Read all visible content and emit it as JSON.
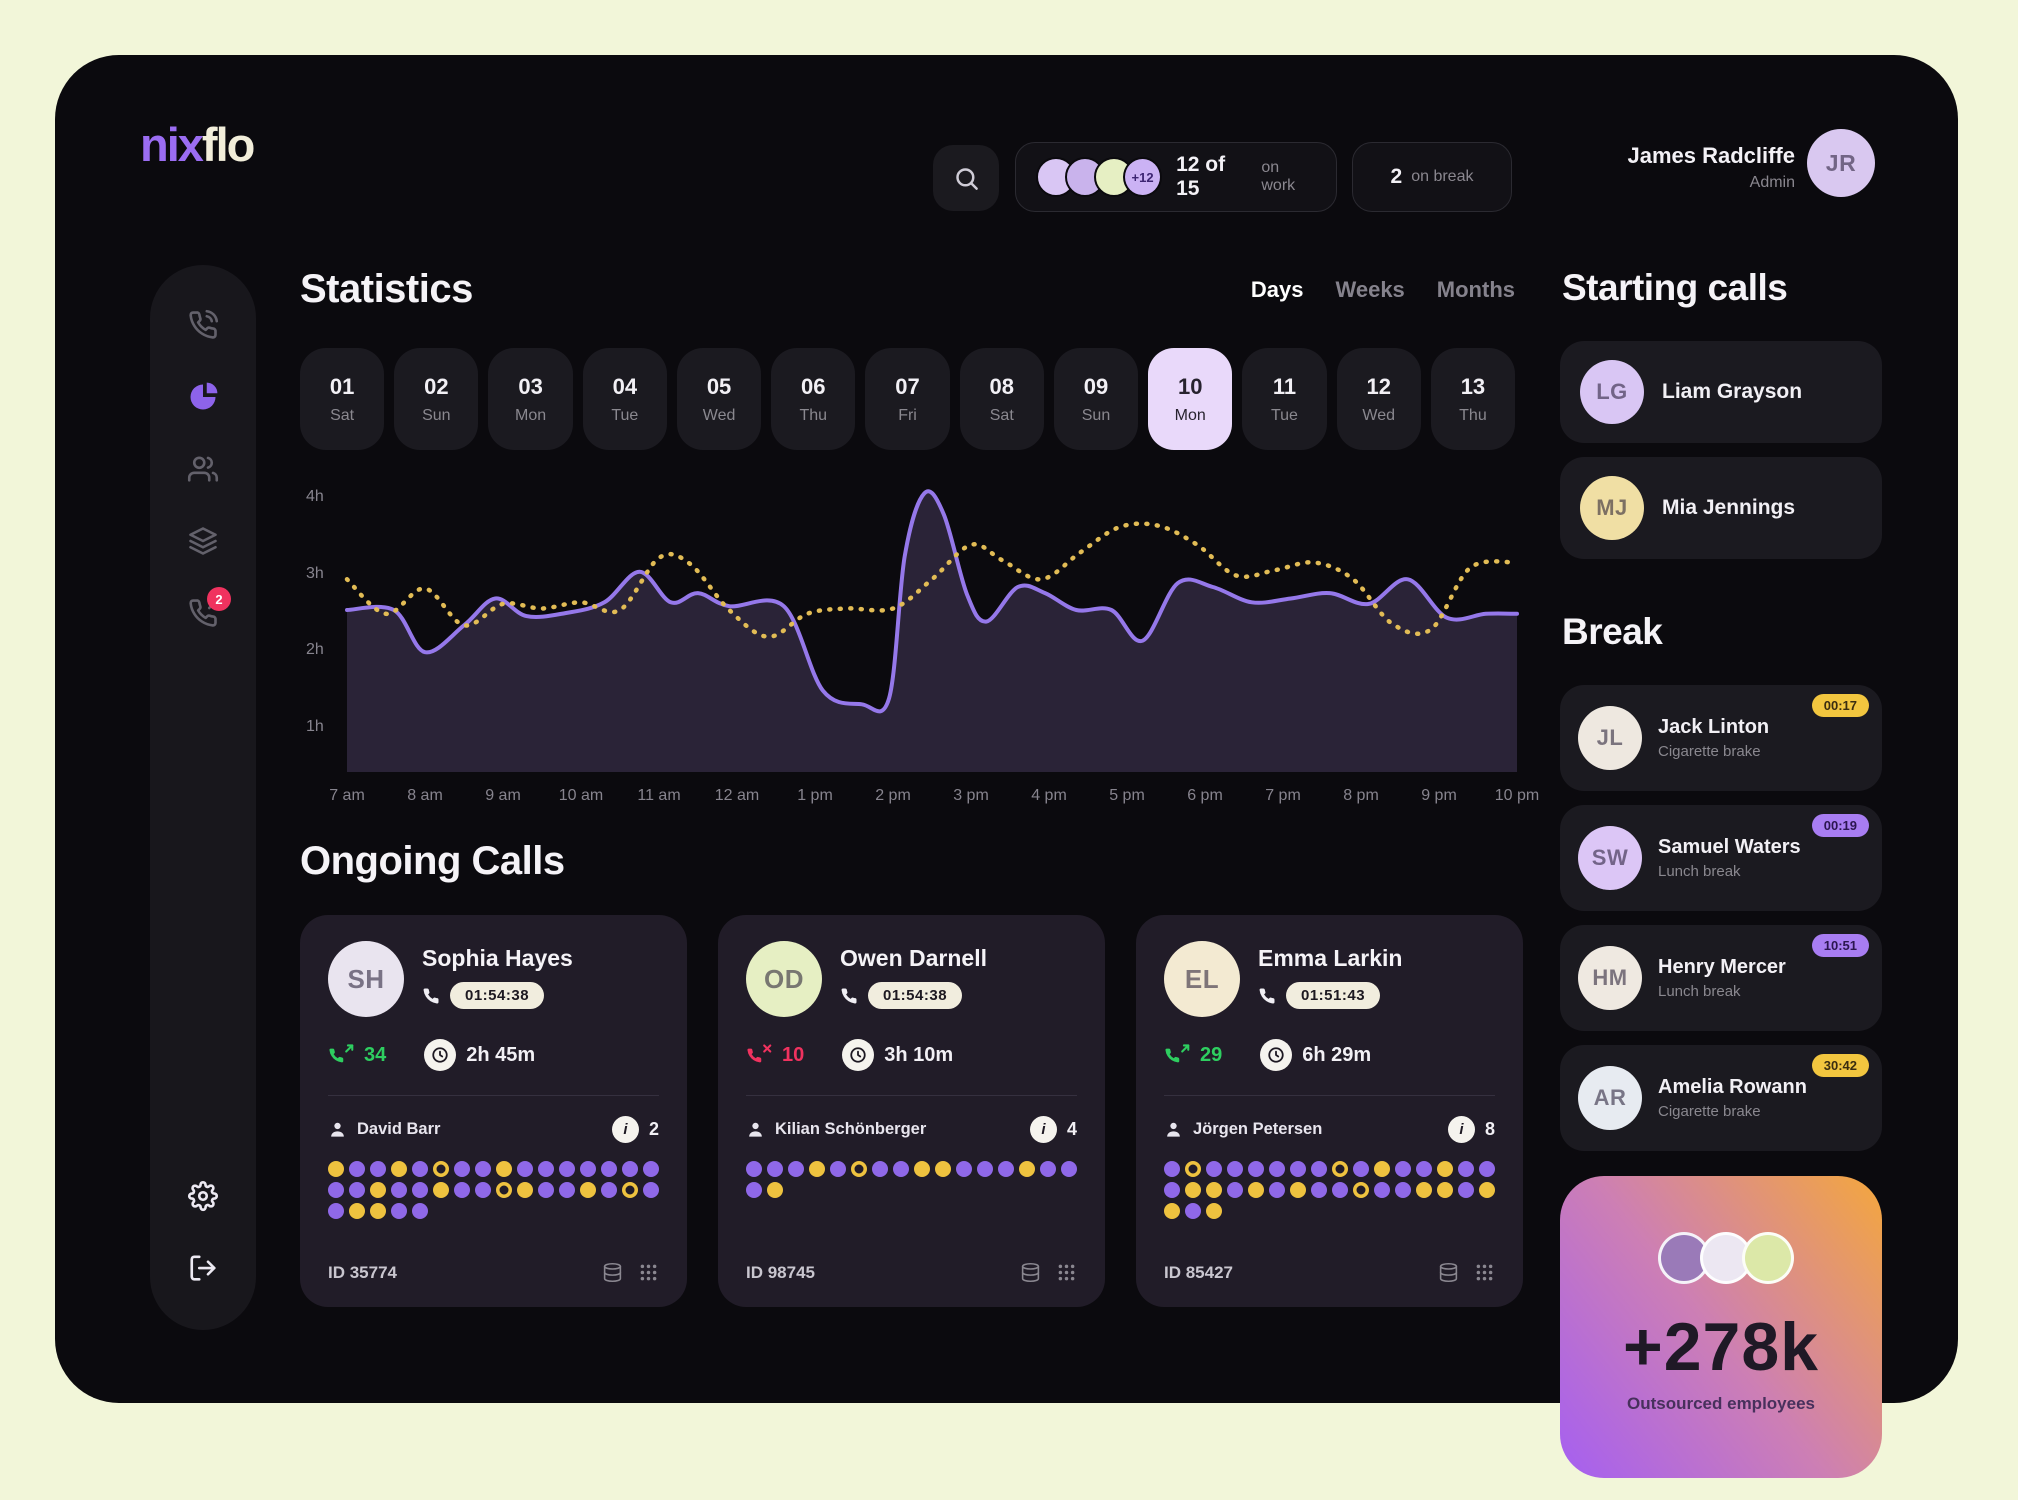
{
  "app": {
    "logo_nix": "nix",
    "logo_flo": "flo"
  },
  "topbar": {
    "on_work": {
      "count": "12 of 15",
      "suffix": "on work",
      "more_badge": "+12",
      "avatars": [
        {
          "bg": "#d9c6f4"
        },
        {
          "bg": "#c9b3ec"
        },
        {
          "bg": "#e6efc3"
        }
      ]
    },
    "on_break": {
      "count": "2",
      "suffix": "on break"
    },
    "user": {
      "name": "James Radcliffe",
      "role": "Admin",
      "initials": "JR",
      "avatar_bg": "#d9c8f0"
    }
  },
  "sidebar": {
    "items": [
      {
        "icon": "phone-call-icon",
        "active": false
      },
      {
        "icon": "pie-chart-icon",
        "active": true
      },
      {
        "icon": "team-icon",
        "active": false
      },
      {
        "icon": "layers-icon",
        "active": false
      },
      {
        "icon": "missed-call-icon",
        "active": false,
        "badge": "2"
      }
    ],
    "bottom_items": [
      {
        "icon": "settings-icon"
      },
      {
        "icon": "logout-icon"
      }
    ]
  },
  "statistics": {
    "title": "Statistics",
    "tabs": [
      {
        "label": "Days",
        "active": true
      },
      {
        "label": "Weeks",
        "active": false
      },
      {
        "label": "Months",
        "active": false
      }
    ],
    "dates": [
      {
        "num": "01",
        "day": "Sat",
        "selected": false
      },
      {
        "num": "02",
        "day": "Sun",
        "selected": false
      },
      {
        "num": "03",
        "day": "Mon",
        "selected": false
      },
      {
        "num": "04",
        "day": "Tue",
        "selected": false
      },
      {
        "num": "05",
        "day": "Wed",
        "selected": false
      },
      {
        "num": "06",
        "day": "Thu",
        "selected": false
      },
      {
        "num": "07",
        "day": "Fri",
        "selected": false
      },
      {
        "num": "08",
        "day": "Sat",
        "selected": false
      },
      {
        "num": "09",
        "day": "Sun",
        "selected": false
      },
      {
        "num": "10",
        "day": "Mon",
        "selected": true
      },
      {
        "num": "11",
        "day": "Tue",
        "selected": false
      },
      {
        "num": "12",
        "day": "Wed",
        "selected": false
      },
      {
        "num": "13",
        "day": "Thu",
        "selected": false
      }
    ]
  },
  "chart_data": {
    "type": "line",
    "title": "Statistics — call hours by time of day (10 Mon)",
    "x_range": [
      7,
      22
    ],
    "y_range": [
      1,
      4
    ],
    "x_ticks": [
      "7 am",
      "8 am",
      "9 am",
      "10 am",
      "11 am",
      "12 am",
      "1 pm",
      "2 pm",
      "3 pm",
      "4 pm",
      "5 pm",
      "6 pm",
      "7 pm",
      "8 pm",
      "9 pm",
      "10 pm"
    ],
    "y_ticks": [
      "4h",
      "3h",
      "2h",
      "1h"
    ],
    "grid": false,
    "legend": "none",
    "series": [
      {
        "name": "purple-area-series",
        "style": "solid-area",
        "color": "#9578ea",
        "fill": "#2a2337",
        "points": [
          [
            7,
            2.5
          ],
          [
            7.6,
            2.5
          ],
          [
            8,
            1.95
          ],
          [
            8.5,
            2.3
          ],
          [
            8.9,
            2.65
          ],
          [
            9.3,
            2.42
          ],
          [
            9.8,
            2.46
          ],
          [
            10.3,
            2.6
          ],
          [
            10.75,
            3.0
          ],
          [
            11.15,
            2.6
          ],
          [
            11.5,
            2.72
          ],
          [
            11.9,
            2.55
          ],
          [
            12.6,
            2.55
          ],
          [
            13.1,
            1.45
          ],
          [
            13.6,
            1.27
          ],
          [
            13.95,
            1.35
          ],
          [
            14.15,
            3.2
          ],
          [
            14.4,
            4.02
          ],
          [
            14.65,
            3.75
          ],
          [
            14.95,
            2.7
          ],
          [
            15.2,
            2.35
          ],
          [
            15.6,
            2.8
          ],
          [
            15.95,
            2.72
          ],
          [
            16.35,
            2.5
          ],
          [
            16.8,
            2.5
          ],
          [
            17.2,
            2.1
          ],
          [
            17.65,
            2.85
          ],
          [
            18.1,
            2.8
          ],
          [
            18.6,
            2.6
          ],
          [
            19.1,
            2.65
          ],
          [
            19.6,
            2.72
          ],
          [
            20.1,
            2.58
          ],
          [
            20.6,
            2.9
          ],
          [
            21.1,
            2.4
          ],
          [
            21.6,
            2.45
          ],
          [
            22,
            2.45
          ]
        ]
      },
      {
        "name": "yellow-dashed-series",
        "style": "dashed",
        "color": "#e2bc55",
        "points": [
          [
            7,
            2.9
          ],
          [
            7.5,
            2.45
          ],
          [
            8,
            2.78
          ],
          [
            8.5,
            2.3
          ],
          [
            9,
            2.58
          ],
          [
            9.5,
            2.52
          ],
          [
            10,
            2.6
          ],
          [
            10.5,
            2.5
          ],
          [
            11,
            3.18
          ],
          [
            11.4,
            3.1
          ],
          [
            11.9,
            2.5
          ],
          [
            12.4,
            2.15
          ],
          [
            12.9,
            2.45
          ],
          [
            13.4,
            2.52
          ],
          [
            14,
            2.52
          ],
          [
            14.5,
            2.9
          ],
          [
            15,
            3.35
          ],
          [
            15.4,
            3.15
          ],
          [
            15.9,
            2.9
          ],
          [
            16.4,
            3.25
          ],
          [
            16.9,
            3.58
          ],
          [
            17.4,
            3.6
          ],
          [
            17.9,
            3.35
          ],
          [
            18.4,
            2.95
          ],
          [
            18.9,
            3.02
          ],
          [
            19.4,
            3.12
          ],
          [
            19.9,
            2.9
          ],
          [
            20.4,
            2.32
          ],
          [
            20.9,
            2.25
          ],
          [
            21.4,
            3.05
          ],
          [
            22,
            3.12
          ]
        ]
      }
    ]
  },
  "ongoing": {
    "title": "Ongoing Calls",
    "cards": [
      {
        "name": "Sophia Hayes",
        "initials": "SH",
        "avatar_bg": "#e9e4ef",
        "timer": "01:54:38",
        "calls": "34",
        "calls_type": "answered",
        "duration": "2h 45m",
        "agent": "David Barr",
        "transfers": "2",
        "id": "ID 35774",
        "dots": [
          [
            "y",
            "p",
            "p",
            "y",
            "p",
            "Y",
            "p",
            "p",
            "y",
            "p",
            "p",
            "p",
            "p",
            "p",
            "p",
            "p"
          ],
          [
            "p",
            "p",
            "y",
            "p",
            "p",
            "y",
            "p",
            "p",
            "Y",
            "y",
            "p",
            "p",
            "y",
            "p",
            "Y",
            "p"
          ],
          [
            "p",
            "y",
            "y",
            "p",
            "p"
          ]
        ]
      },
      {
        "name": "Owen Darnell",
        "initials": "OD",
        "avatar_bg": "#e6efc3",
        "timer": "01:54:38",
        "calls": "10",
        "calls_type": "missed",
        "duration": "3h 10m",
        "agent": "Kilian Schönberger",
        "transfers": "4",
        "id": "ID 98745",
        "dots": [
          [
            "p",
            "p",
            "p",
            "y",
            "p",
            "Y",
            "p",
            "p",
            "y",
            "y",
            "p",
            "p",
            "p",
            "y",
            "p",
            "p"
          ],
          [
            "p",
            "y"
          ]
        ]
      },
      {
        "name": "Emma Larkin",
        "initials": "EL",
        "avatar_bg": "#f3ead2",
        "timer": "01:51:43",
        "calls": "29",
        "calls_type": "answered",
        "duration": "6h 29m",
        "agent": "Jörgen Petersen",
        "transfers": "8",
        "id": "ID 85427",
        "dots": [
          [
            "p",
            "Y",
            "p",
            "p",
            "p",
            "p",
            "p",
            "p",
            "Y",
            "p",
            "y",
            "p",
            "p",
            "y",
            "p",
            "p"
          ],
          [
            "p",
            "y",
            "y",
            "p",
            "y",
            "p",
            "y",
            "p",
            "p",
            "Y",
            "p",
            "p",
            "y",
            "y",
            "p",
            "y"
          ],
          [
            "y",
            "p",
            "y"
          ]
        ]
      }
    ]
  },
  "starting_calls": {
    "title": "Starting calls",
    "people": [
      {
        "name": "Liam Grayson",
        "initials": "LG",
        "avatar_bg": "#d9c6f4"
      },
      {
        "name": "Mia Jennings",
        "initials": "MJ",
        "avatar_bg": "#f0dfa4"
      }
    ]
  },
  "break_section": {
    "title": "Break",
    "people": [
      {
        "name": "Jack Linton",
        "sub": "Cigarette brake",
        "time": "00:17",
        "badge": "yellow",
        "initials": "JL",
        "avatar_bg": "#eee8e0"
      },
      {
        "name": "Samuel Waters",
        "sub": "Lunch break",
        "time": "00:19",
        "badge": "purple",
        "initials": "SW",
        "avatar_bg": "#dcc6f6"
      },
      {
        "name": "Henry Mercer",
        "sub": "Lunch break",
        "time": "10:51",
        "badge": "purple",
        "initials": "HM",
        "avatar_bg": "#efe9e1"
      },
      {
        "name": "Amelia Rowann",
        "sub": "Cigarette brake",
        "time": "30:42",
        "badge": "yellow",
        "initials": "AR",
        "avatar_bg": "#e7ebf1"
      }
    ]
  },
  "outsourced": {
    "value": "+278k",
    "label": "Outsourced employees",
    "avatars": [
      {
        "bg": "#9a7ab8"
      },
      {
        "bg": "#ece7f2"
      },
      {
        "bg": "#dce8a8"
      }
    ]
  },
  "colors": {
    "accent_purple": "#8d63ea",
    "yellow": "#eec23f",
    "green": "#2ece60",
    "red": "#f0325f",
    "selected_pill": "#e9d9fa",
    "page_bg": "#f2f6d9",
    "window_bg": "#0b0a0e"
  }
}
